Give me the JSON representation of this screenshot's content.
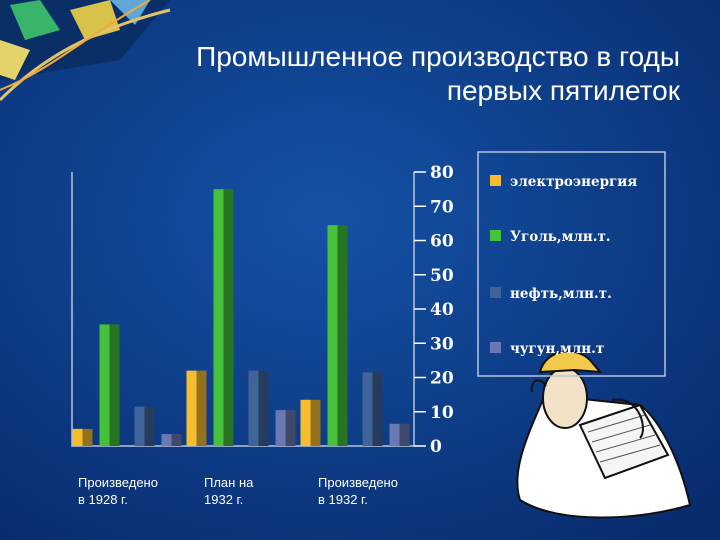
{
  "title_lines": [
    "Промышленное производство в годы",
    "первых пятилеток"
  ],
  "chart_data": {
    "type": "bar",
    "title": "Промышленное производство в годы первых пятилеток",
    "categories": [
      [
        "Произведено",
        "в 1928 г."
      ],
      [
        "План на",
        "1932 г."
      ],
      [
        "Произведено",
        "в 1932 г."
      ]
    ],
    "ylim": [
      0,
      80
    ],
    "yticks": [
      "0",
      "10",
      "20",
      "30",
      "40",
      "50",
      "60",
      "70",
      "80"
    ],
    "series": [
      {
        "name": "электроэнергия",
        "values": [
          5,
          22,
          13.5
        ],
        "color": "#f7bd2e"
      },
      {
        "name": "Уголь,млн.т.",
        "values": [
          35.5,
          75,
          64.5
        ],
        "color": "#45c13b"
      },
      {
        "name": "нефть,млн.т.",
        "values": [
          11.5,
          22,
          21.5
        ],
        "color": "#40649a"
      },
      {
        "name": "чугун,млн.т",
        "values": [
          3.5,
          10.5,
          6.5
        ],
        "color": "#6a78b4"
      }
    ],
    "legend": "right",
    "grid": false
  }
}
